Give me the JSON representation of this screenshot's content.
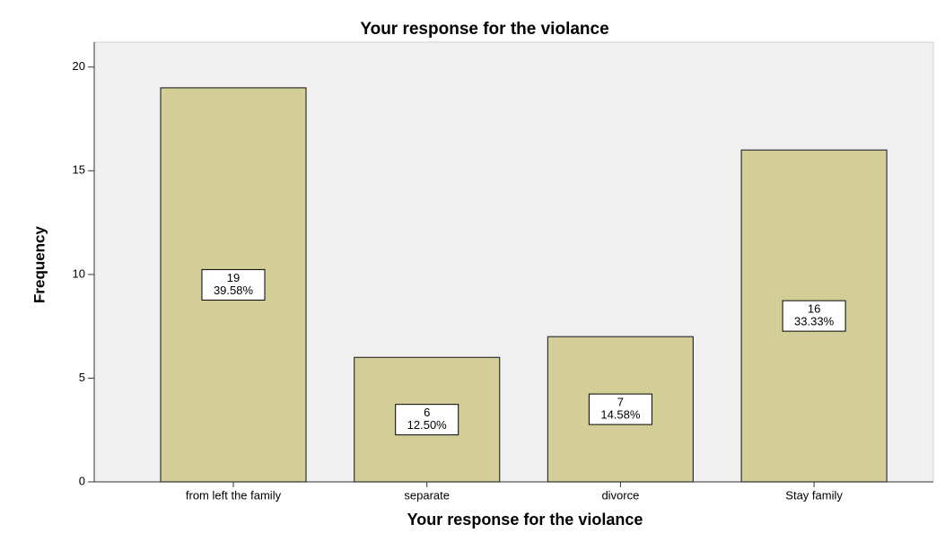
{
  "chart_data": {
    "type": "bar",
    "title": "Your response for the violance",
    "x_label": "Your response for the violance",
    "y_label": "Frequency",
    "categories": [
      "from left the family",
      "separate",
      "divorce",
      "Stay family"
    ],
    "values": [
      19,
      6,
      7,
      16
    ],
    "percent_labels": [
      "39.58%",
      "12.50%",
      "14.58%",
      "33.33%"
    ],
    "color": "#d3cd97",
    "ylim": [
      0,
      21.2
    ],
    "yticks": [
      0,
      5,
      10,
      15,
      20
    ]
  }
}
